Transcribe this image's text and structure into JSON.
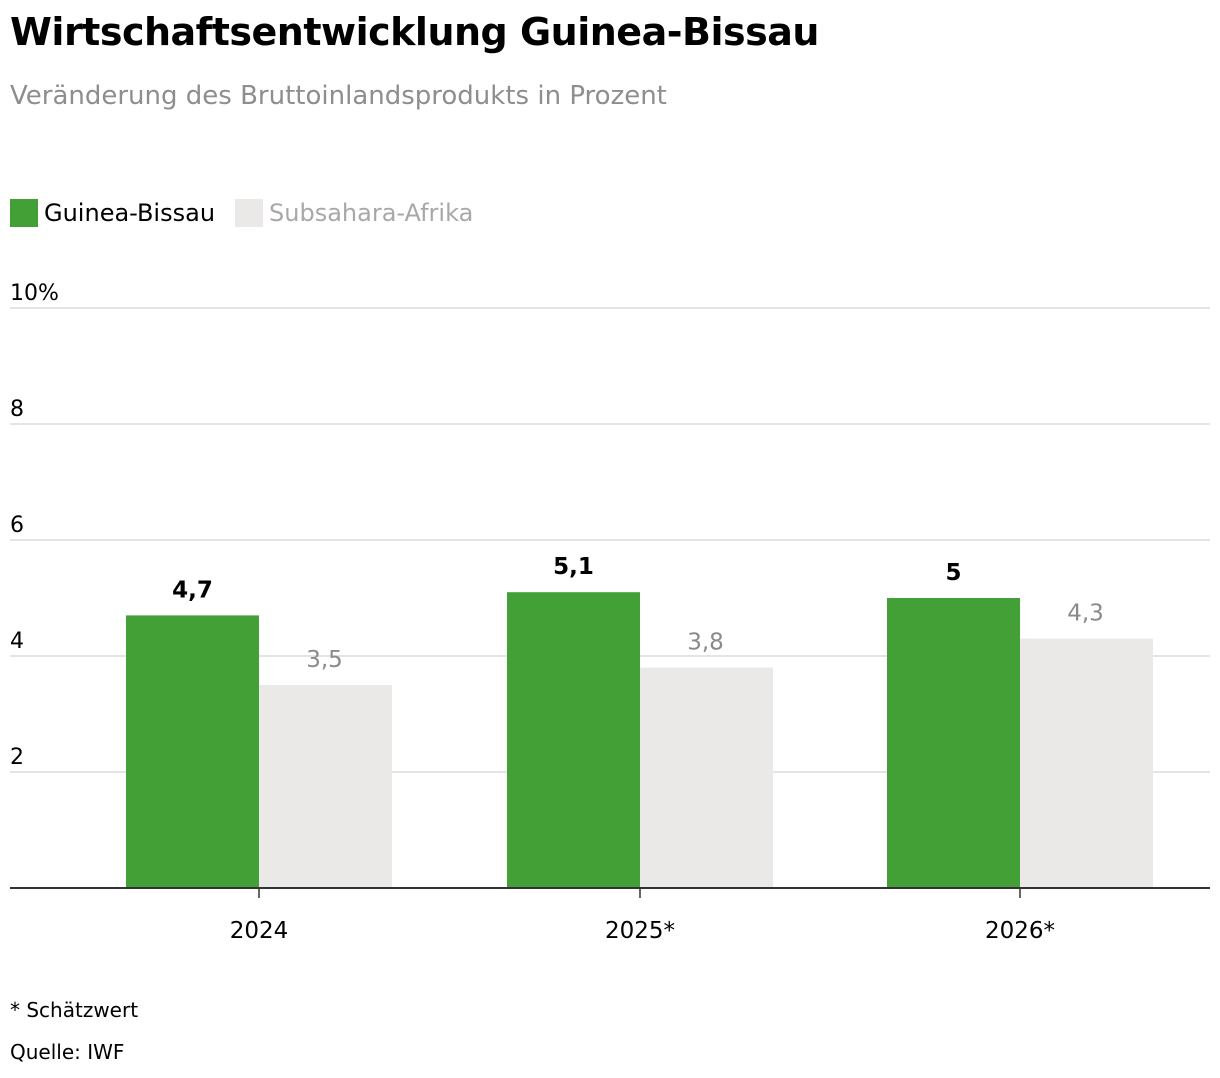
{
  "header": {
    "title": "Wirtschaftsentwicklung Guinea-Bissau",
    "subtitle": "Veränderung des Bruttoinlandsprodukts in Prozent"
  },
  "colors": {
    "text": "#000000",
    "subtitle": "#8e8e8e",
    "guinea": "#43a036",
    "subsahara": "#ebe9e7",
    "subsahara_text": "#a8a8a8",
    "subsahara_label": "#8a8a8a",
    "grid": "#dcdcdc",
    "axis": "#333333"
  },
  "chart_data": {
    "type": "bar",
    "categories": [
      "2024",
      "2025*",
      "2026*"
    ],
    "series": [
      {
        "name": "Guinea-Bissau",
        "values": [
          4.7,
          5.1,
          5.0
        ],
        "labels": [
          "4,7",
          "5,1",
          "5"
        ]
      },
      {
        "name": "Subsahara-Afrika",
        "values": [
          3.5,
          3.8,
          4.3
        ],
        "labels": [
          "3,5",
          "3,8",
          "4,3"
        ]
      }
    ],
    "yticks": [
      {
        "value": 2,
        "label": "2"
      },
      {
        "value": 4,
        "label": "4"
      },
      {
        "value": 6,
        "label": "6"
      },
      {
        "value": 8,
        "label": "8"
      },
      {
        "value": 10,
        "label": "10%"
      }
    ],
    "ylim": [
      0,
      10
    ],
    "grid": true,
    "legend_position": "top-left"
  },
  "footer": {
    "note": "* Schätzwert",
    "source": "Quelle: IWF"
  }
}
